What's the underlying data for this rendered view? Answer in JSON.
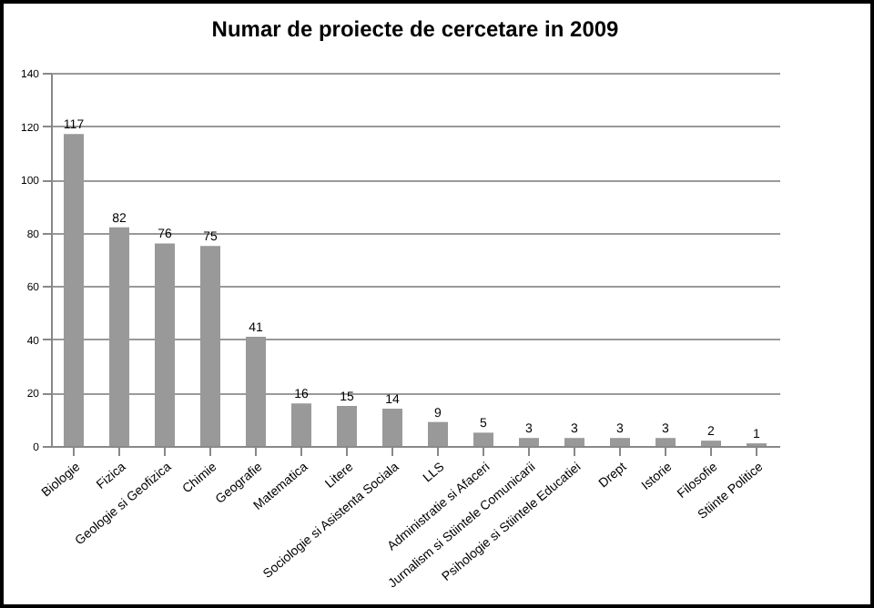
{
  "chart_data": {
    "type": "bar",
    "title": "Numar de proiecte de cercetare in 2009",
    "categories": [
      "Biologie",
      "Fizica",
      "Geologie si Geofizica",
      "Chimie",
      "Geografie",
      "Matematica",
      "Litere",
      "Sociologie si Asistenta Sociala",
      "LLS",
      "Administratie si Afaceri",
      "Jurnalism si Stiintele Comunicarii",
      "Psihologie si Stiintele Educatiei",
      "Drept",
      "Istorie",
      "Filosofie",
      "Stiinte Politice"
    ],
    "values": [
      117,
      82,
      76,
      75,
      41,
      16,
      15,
      14,
      9,
      5,
      3,
      3,
      3,
      3,
      2,
      1
    ],
    "color": "#999999",
    "ylim": [
      0,
      140
    ],
    "yticks": [
      0,
      20,
      40,
      60,
      80,
      100,
      120,
      140
    ],
    "grid": "y",
    "data_labels": true
  }
}
